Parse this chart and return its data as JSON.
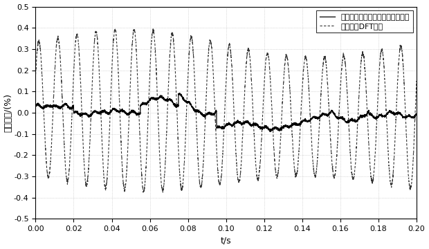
{
  "xlim": [
    0,
    0.2
  ],
  "ylim": [
    -0.5,
    0.5
  ],
  "xlabel": "t/s",
  "ylabel": "幅値误差/(%)",
  "legend1": "基于三次样条插値的同步相量算法",
  "legend2": "混合递推DFT算法",
  "xticks": [
    0,
    0.02,
    0.04,
    0.06,
    0.08,
    0.1,
    0.12,
    0.14,
    0.16,
    0.18,
    0.2
  ],
  "yticks": [
    -0.5,
    -0.4,
    -0.3,
    -0.2,
    -0.1,
    0,
    0.1,
    0.2,
    0.3,
    0.4,
    0.5
  ],
  "n_points": 4000,
  "duration": 0.2,
  "background_color": "#ffffff",
  "line1_color": "#000000",
  "line2_color": "#333333"
}
